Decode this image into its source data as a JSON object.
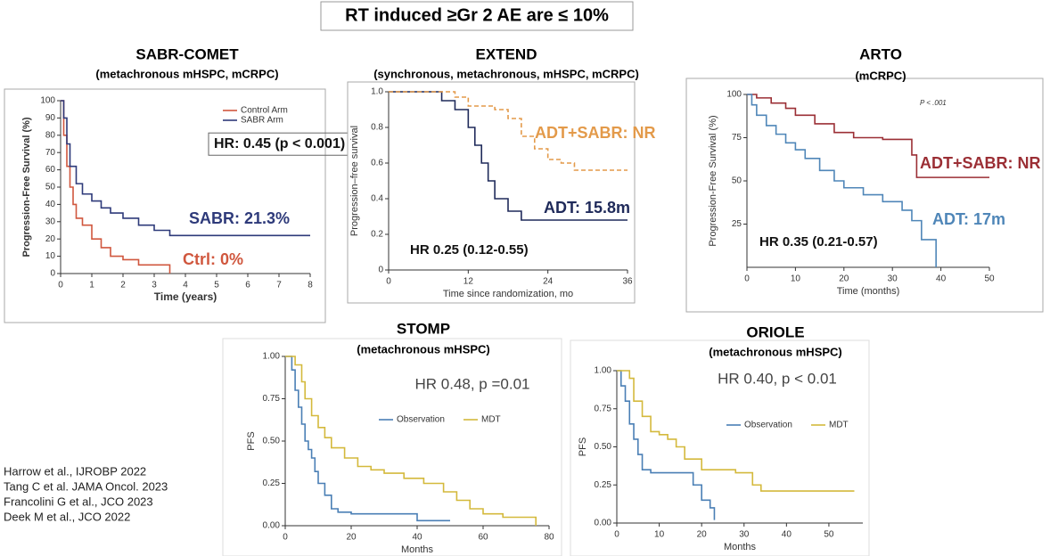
{
  "title": "RT induced ≥Gr 2 AE are ≤ 10%",
  "references": [
    "Harrow et al., IJROBP 2022",
    "Tang C et al. JAMA Oncol. 2023",
    "Francolini G et al., JCO 2023",
    "Deek M et al., JCO 2022"
  ],
  "chart_data": [
    {
      "type": "line",
      "title": "SABR-COMET",
      "subtitle": "(metachronous mHSPC, mCRPC)",
      "xlabel": "Time (years)",
      "ylabel": "Progression-Free Survival (%)",
      "xlim": [
        0,
        8
      ],
      "xticks": [
        0,
        1,
        2,
        3,
        4,
        5,
        6,
        7,
        8
      ],
      "ylim": [
        0,
        100
      ],
      "yticks": [
        0,
        10,
        20,
        30,
        40,
        50,
        60,
        70,
        80,
        90,
        100
      ],
      "legend": "upper right",
      "series": [
        {
          "name": "Control Arm",
          "color": "#d0573e",
          "x": [
            0,
            0.1,
            0.2,
            0.3,
            0.4,
            0.5,
            0.7,
            1,
            1.3,
            1.6,
            2,
            2.5,
            3,
            3.5
          ],
          "values": [
            100,
            80,
            62,
            50,
            40,
            32,
            28,
            20,
            15,
            10,
            8,
            5,
            5,
            0
          ]
        },
        {
          "name": "SABR Arm",
          "color": "#2e3a7a",
          "x": [
            0,
            0.1,
            0.2,
            0.3,
            0.5,
            0.7,
            1,
            1.3,
            1.6,
            2,
            2.5,
            3,
            3.5,
            4,
            5,
            6,
            7,
            8
          ],
          "values": [
            100,
            90,
            75,
            62,
            52,
            46,
            42,
            38,
            35,
            32,
            28,
            25,
            22,
            22,
            22,
            22,
            22,
            22
          ]
        }
      ],
      "annotations": [
        {
          "text": "HR: 0.45 (p < 0.001)",
          "color": "#111111"
        },
        {
          "text": "SABR: 21.3%",
          "color": "#2e3a7a"
        },
        {
          "text": "Ctrl: 0%",
          "color": "#d0573e"
        }
      ]
    },
    {
      "type": "line",
      "title": "EXTEND",
      "subtitle": "(synchronous, metachronous, mHSPC, mCRPC)",
      "xlabel": "Time since randomization, mo",
      "ylabel": "Progression–free survival",
      "xlim": [
        0,
        36
      ],
      "xticks": [
        0,
        12,
        24,
        36
      ],
      "ylim": [
        0,
        1
      ],
      "yticks": [
        0,
        0.2,
        0.4,
        0.6,
        0.8,
        {
          "value": 1,
          "label": "1.0"
        }
      ],
      "series": [
        {
          "color": "#1f2a5a",
          "x": [
            0,
            6,
            8,
            10,
            12,
            13,
            14,
            15,
            16,
            18,
            20,
            24,
            30,
            36
          ],
          "values": [
            1,
            1,
            0.95,
            0.9,
            0.8,
            0.7,
            0.6,
            0.5,
            0.4,
            0.33,
            0.28,
            0.28,
            0.28,
            0.28
          ]
        },
        {
          "color": "#e39a4a",
          "dash": true,
          "x": [
            0,
            8,
            10,
            12,
            16,
            18,
            20,
            22,
            24,
            26,
            28,
            30,
            36
          ],
          "values": [
            1,
            1,
            0.97,
            0.92,
            0.9,
            0.85,
            0.75,
            0.68,
            0.62,
            0.6,
            0.56,
            0.56,
            0.56
          ]
        }
      ],
      "annotations": [
        {
          "text": "ADT+SABR: NR",
          "color": "#e39a4a"
        },
        {
          "text": "ADT: 15.8m",
          "color": "#1f2a5a"
        },
        {
          "text": "HR 0.25 (0.12-0.55)",
          "color": "#111111"
        }
      ]
    },
    {
      "type": "line",
      "title": "ARTO",
      "subtitle": "(mCRPC)",
      "xlabel": "Time (months)",
      "ylabel": "Progression-Free Survival (%)",
      "xlim": [
        0,
        50
      ],
      "xticks": [
        0,
        10,
        20,
        30,
        40,
        50
      ],
      "ylim": [
        0,
        100
      ],
      "yticks": [
        25,
        50,
        75,
        100
      ],
      "series": [
        {
          "color": "#9b2f35",
          "x": [
            0,
            2,
            5,
            8,
            10,
            14,
            18,
            22,
            28,
            34,
            35,
            50
          ],
          "values": [
            100,
            98,
            95,
            92,
            88,
            83,
            78,
            75,
            74,
            65,
            52,
            52
          ]
        },
        {
          "color": "#4f86b8",
          "x": [
            0,
            1,
            2,
            4,
            6,
            8,
            10,
            12,
            15,
            18,
            20,
            24,
            28,
            32,
            34,
            36,
            39
          ],
          "values": [
            100,
            94,
            88,
            82,
            77,
            72,
            68,
            63,
            56,
            50,
            46,
            42,
            38,
            33,
            27,
            16,
            0
          ]
        }
      ],
      "annotations": [
        {
          "text": "P < .001",
          "color": "#333333"
        },
        {
          "text": "ADT+SABR: NR",
          "color": "#9b2f35"
        },
        {
          "text": "ADT: 17m",
          "color": "#4f86b8"
        },
        {
          "text": "HR 0.35 (0.21-0.57)",
          "color": "#111111"
        }
      ]
    },
    {
      "type": "line",
      "title": "STOMP",
      "subtitle": "(metachronous mHSPC)",
      "xlabel": "Months",
      "ylabel": "PFS",
      "xlim": [
        0,
        80
      ],
      "xticks": [
        0,
        20,
        40,
        60,
        80
      ],
      "ylim": [
        0,
        1
      ],
      "yticks": [
        {
          "value": 0,
          "label": "0.00"
        },
        {
          "value": 0.25,
          "label": "0.25"
        },
        {
          "value": 0.5,
          "label": "0.50"
        },
        {
          "value": 0.75,
          "label": "0.75"
        },
        {
          "value": 1,
          "label": "1.00"
        }
      ],
      "legend": "center",
      "series": [
        {
          "name": "Observation",
          "color": "#4a7fb5",
          "x": [
            0,
            2,
            3,
            4,
            5,
            6,
            7,
            8,
            9,
            10,
            12,
            14,
            16,
            20,
            30,
            40,
            50
          ],
          "values": [
            1,
            0.92,
            0.8,
            0.7,
            0.6,
            0.5,
            0.45,
            0.4,
            0.32,
            0.25,
            0.18,
            0.1,
            0.08,
            0.07,
            0.07,
            0.03,
            0.03
          ]
        },
        {
          "name": "MDT",
          "color": "#d4b93c",
          "x": [
            0,
            3,
            5,
            6,
            8,
            10,
            12,
            14,
            18,
            22,
            26,
            30,
            36,
            42,
            48,
            52,
            56,
            60,
            66,
            76
          ],
          "values": [
            1,
            0.95,
            0.85,
            0.75,
            0.65,
            0.58,
            0.52,
            0.46,
            0.4,
            0.35,
            0.33,
            0.31,
            0.28,
            0.25,
            0.2,
            0.15,
            0.1,
            0.07,
            0.05,
            0
          ]
        }
      ],
      "annotations": [
        {
          "text": "HR 0.48, p =0.01",
          "color": "#444444"
        }
      ]
    },
    {
      "type": "line",
      "title": "ORIOLE",
      "subtitle": "(metachronous mHSPC)",
      "xlabel": "Months",
      "ylabel": "PFS",
      "xlim": [
        0,
        58
      ],
      "xticks": [
        0,
        10,
        20,
        30,
        40,
        50
      ],
      "ylim": [
        0,
        1
      ],
      "yticks": [
        {
          "value": 0,
          "label": "0.00"
        },
        {
          "value": 0.25,
          "label": "0.25"
        },
        {
          "value": 0.5,
          "label": "0.50"
        },
        {
          "value": 0.75,
          "label": "0.75"
        },
        {
          "value": 1,
          "label": "1.00"
        }
      ],
      "legend": "center",
      "series": [
        {
          "name": "Observation",
          "color": "#4a7fb5",
          "x": [
            0,
            1,
            2,
            3,
            4,
            5,
            6,
            8,
            10,
            14,
            18,
            20,
            22,
            23
          ],
          "values": [
            1,
            0.9,
            0.8,
            0.65,
            0.55,
            0.45,
            0.35,
            0.33,
            0.33,
            0.33,
            0.25,
            0.15,
            0.1,
            0.02
          ]
        },
        {
          "name": "MDT",
          "color": "#d4b93c",
          "x": [
            0,
            3,
            4,
            6,
            8,
            10,
            12,
            14,
            16,
            20,
            24,
            28,
            32,
            34,
            36,
            56
          ],
          "values": [
            1,
            0.95,
            0.8,
            0.7,
            0.6,
            0.58,
            0.55,
            0.5,
            0.42,
            0.35,
            0.35,
            0.33,
            0.25,
            0.21,
            0.21,
            0.21
          ]
        }
      ],
      "annotations": [
        {
          "text": "HR 0.40, p < 0.01",
          "color": "#444444"
        }
      ]
    }
  ]
}
